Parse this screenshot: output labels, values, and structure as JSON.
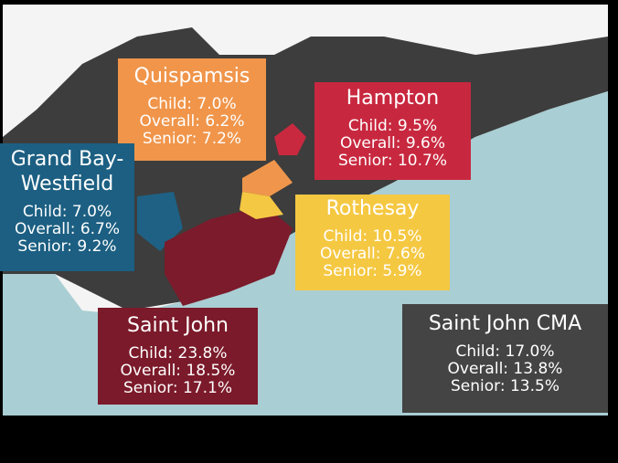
{
  "regions": [
    {
      "name": [
        "Quispamsis"
      ],
      "stats": [
        "Child: 7.0%",
        "Overall: 6.2%",
        "Senior: 7.2%"
      ]
    },
    {
      "name": [
        "Hampton"
      ],
      "stats": [
        "Child: 9.5%",
        "Overall: 9.6%",
        "Senior: 10.7%"
      ]
    },
    {
      "name": [
        "Grand Bay-",
        "Westfield"
      ],
      "stats": [
        "Child: 7.0%",
        "Overall: 6.7%",
        "Senior: 9.2%"
      ]
    },
    {
      "name": [
        "Rothesay"
      ],
      "stats": [
        "Child: 10.5%",
        "Overall: 7.6%",
        "Senior: 5.9%"
      ]
    },
    {
      "name": [
        "Saint John"
      ],
      "stats": [
        "Child: 23.8%",
        "Overall: 18.5%",
        "Senior: 17.1%"
      ]
    },
    {
      "name": [
        "Saint John CMA"
      ],
      "stats": [
        "Child: 17.0%",
        "Overall: 13.8%",
        "Senior: 13.5%"
      ]
    }
  ]
}
